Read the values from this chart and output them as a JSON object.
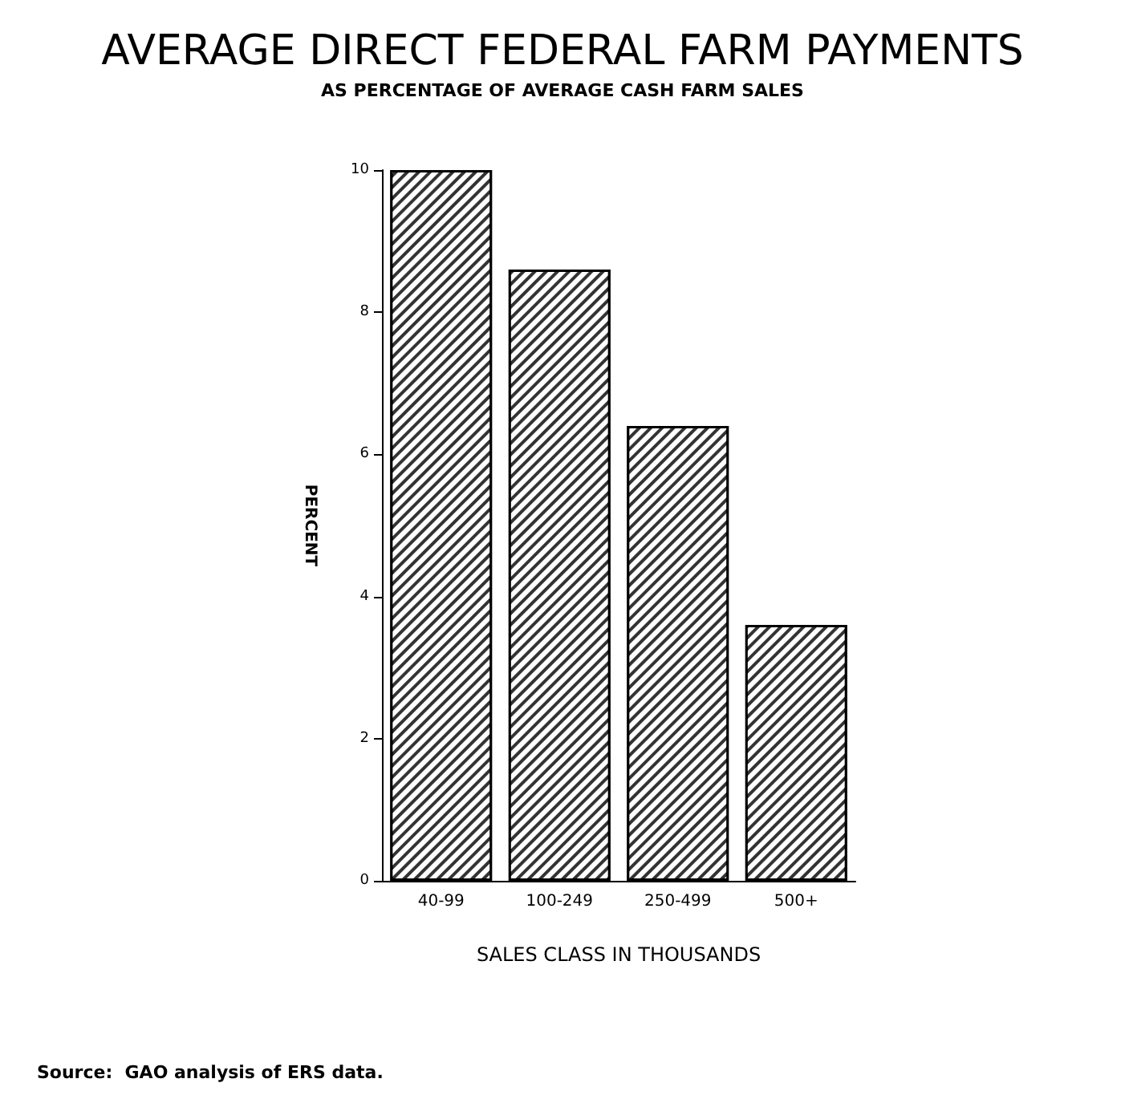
{
  "chart_data": {
    "type": "bar",
    "title": "AVERAGE DIRECT FEDERAL FARM PAYMENTS",
    "subtitle": "AS PERCENTAGE OF AVERAGE CASH FARM SALES",
    "xlabel": "SALES CLASS IN THOUSANDS",
    "ylabel": "PERCENT",
    "categories": [
      "40-99",
      "100-249",
      "250-499",
      "500+"
    ],
    "values": [
      10,
      8.6,
      6.4,
      3.6
    ],
    "color": "#333333",
    "ylim": [
      0,
      10
    ],
    "yticks": [
      0,
      2,
      4,
      6,
      8,
      10
    ],
    "grid": false,
    "annotations": [
      "Source:  GAO analysis of ERS data."
    ]
  }
}
